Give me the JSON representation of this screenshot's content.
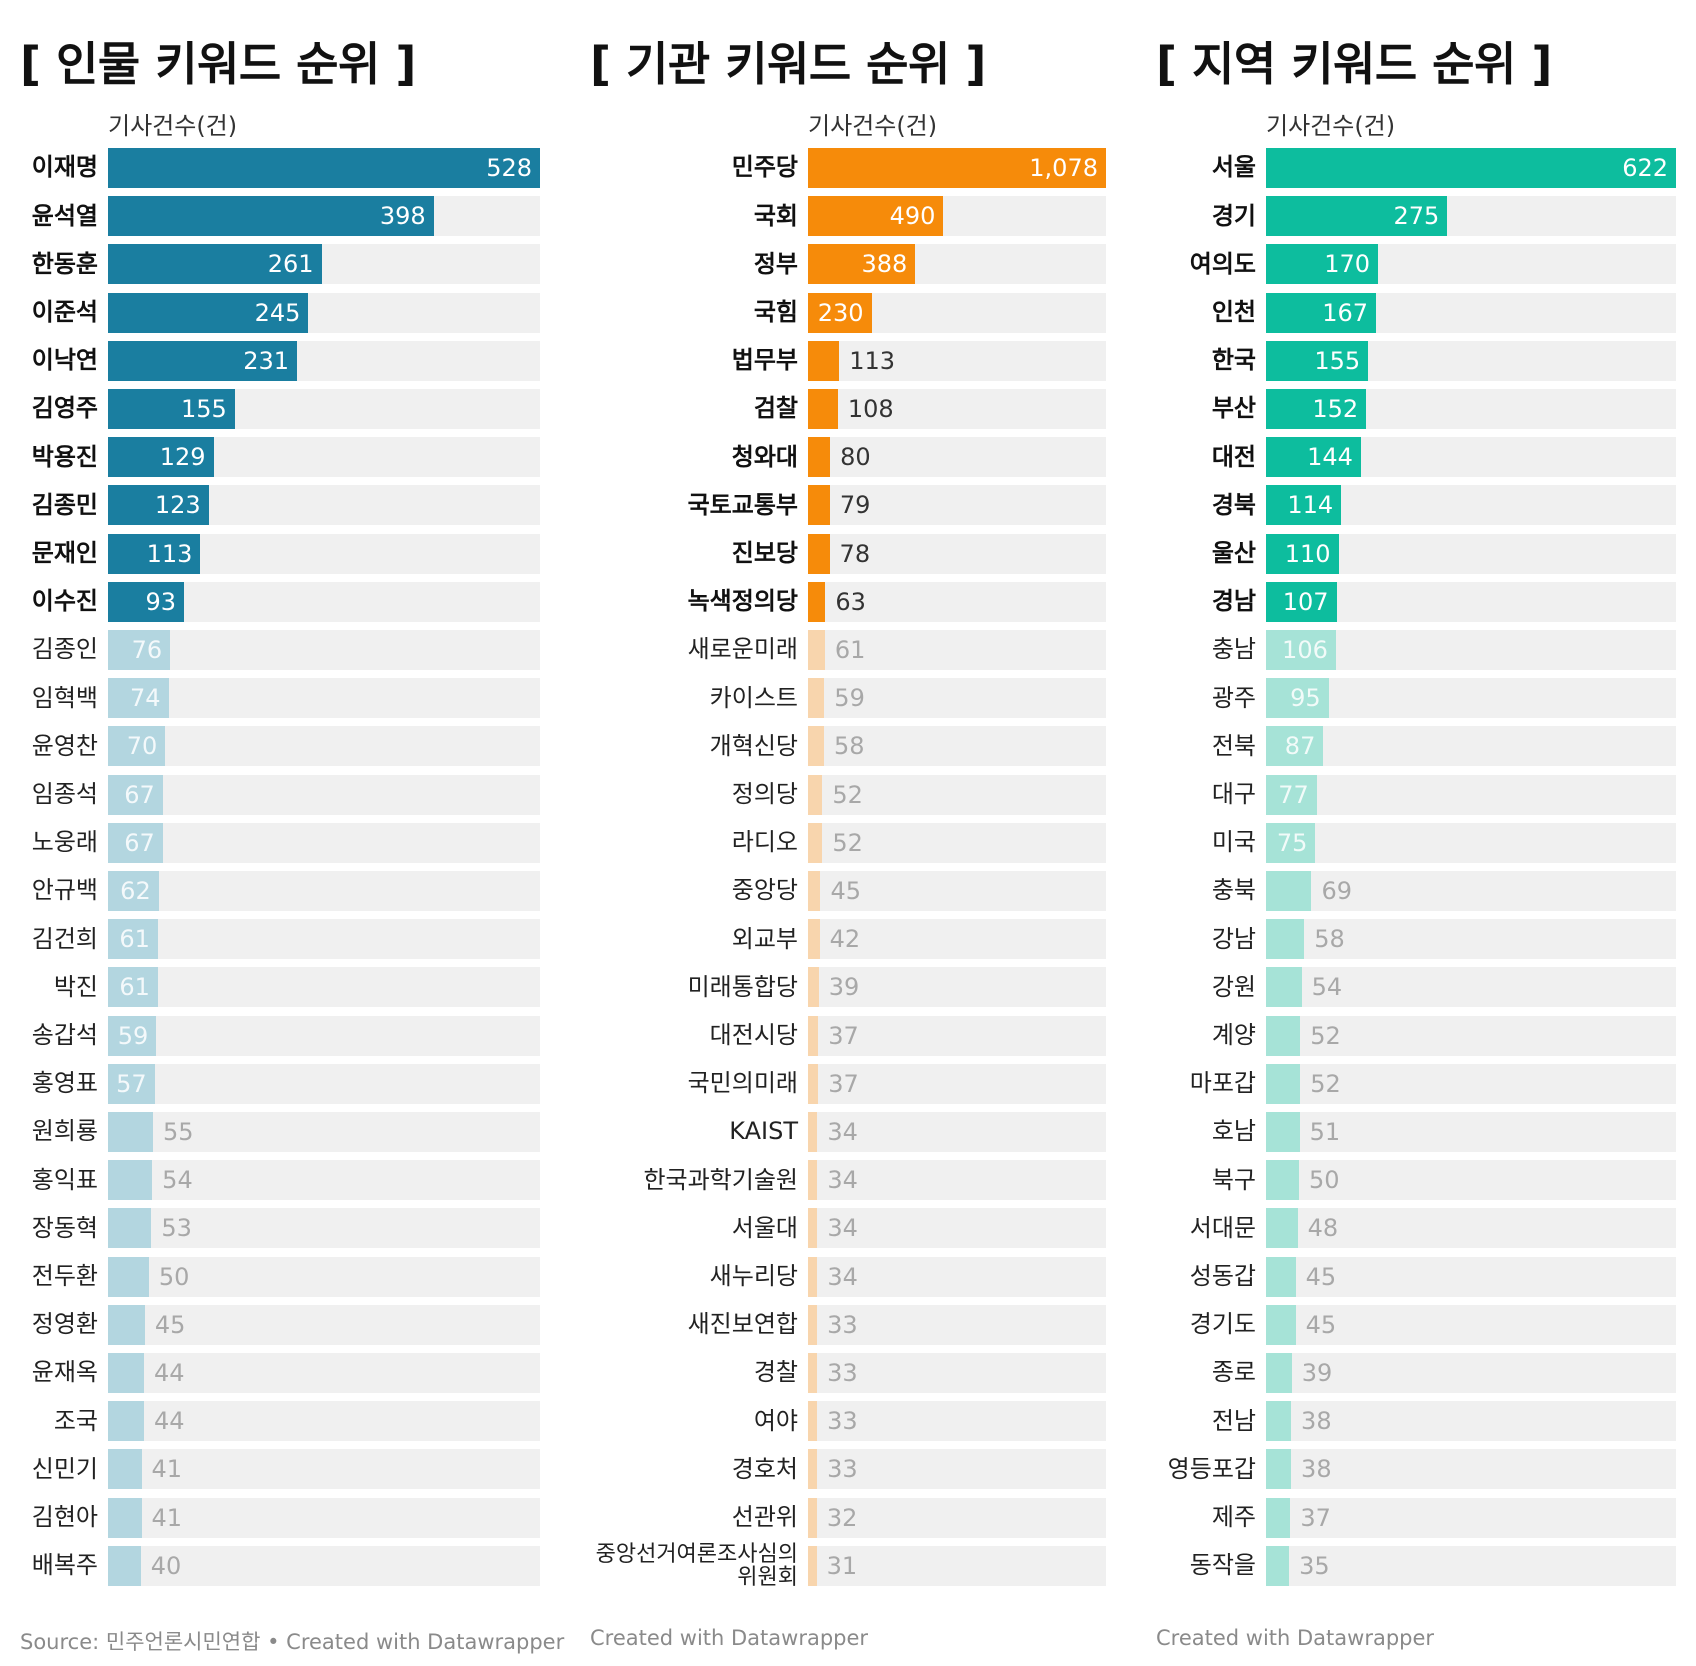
{
  "chart_data": [
    {
      "type": "bar",
      "orientation": "horizontal",
      "title": "[ 인물 키워드 순위 ]",
      "unit_label": "기사건수(건)",
      "accent_color": "#1a7ea0",
      "faded_color": "#b3d6e0",
      "highlight_top": 10,
      "categories": [
        "이재명",
        "윤석열",
        "한동훈",
        "이준석",
        "이낙연",
        "김영주",
        "박용진",
        "김종민",
        "문재인",
        "이수진",
        "김종인",
        "임혁백",
        "윤영찬",
        "임종석",
        "노웅래",
        "안규백",
        "김건희",
        "박진",
        "송갑석",
        "홍영표",
        "원희룡",
        "홍익표",
        "장동혁",
        "전두환",
        "정영환",
        "윤재옥",
        "조국",
        "신민기",
        "김현아",
        "배복주"
      ],
      "values": [
        528,
        398,
        261,
        245,
        231,
        155,
        129,
        123,
        113,
        93,
        76,
        74,
        70,
        67,
        67,
        62,
        61,
        61,
        59,
        57,
        55,
        54,
        53,
        50,
        45,
        44,
        44,
        41,
        41,
        40
      ],
      "value_labels": [
        "528",
        "398",
        "261",
        "245",
        "231",
        "155",
        "129",
        "123",
        "113",
        "93",
        "76",
        "74",
        "70",
        "67",
        "67",
        "62",
        "61",
        "61",
        "59",
        "57",
        "55",
        "54",
        "53",
        "50",
        "45",
        "44",
        "44",
        "41",
        "41",
        "40"
      ],
      "xlim": [
        0,
        528
      ],
      "credit": "Source: 민주언론시민연합 • Created with Datawrapper"
    },
    {
      "type": "bar",
      "orientation": "horizontal",
      "title": "[ 기관 키워드 순위 ]",
      "unit_label": "기사건수(건)",
      "accent_color": "#f68b0a",
      "faded_color": "#f8d5ad",
      "highlight_top": 10,
      "categories": [
        "민주당",
        "국회",
        "정부",
        "국힘",
        "법무부",
        "검찰",
        "청와대",
        "국토교통부",
        "진보당",
        "녹색정의당",
        "새로운미래",
        "카이스트",
        "개혁신당",
        "정의당",
        "라디오",
        "중앙당",
        "외교부",
        "미래통합당",
        "대전시당",
        "국민의미래",
        "KAIST",
        "한국과학기술원",
        "서울대",
        "새누리당",
        "새진보연합",
        "경찰",
        "여야",
        "경호처",
        "선관위",
        "중앙선거여론조사심의위원회"
      ],
      "values": [
        1078,
        490,
        388,
        230,
        113,
        108,
        80,
        79,
        78,
        63,
        61,
        59,
        58,
        52,
        52,
        45,
        42,
        39,
        37,
        37,
        34,
        34,
        34,
        34,
        33,
        33,
        33,
        33,
        32,
        31
      ],
      "value_labels": [
        "1,078",
        "490",
        "388",
        "230",
        "113",
        "108",
        "80",
        "79",
        "78",
        "63",
        "61",
        "59",
        "58",
        "52",
        "52",
        "45",
        "42",
        "39",
        "37",
        "37",
        "34",
        "34",
        "34",
        "34",
        "33",
        "33",
        "33",
        "33",
        "32",
        "31"
      ],
      "xlim": [
        0,
        1078
      ],
      "credit": "Created with Datawrapper"
    },
    {
      "type": "bar",
      "orientation": "horizontal",
      "title": "[ 지역 키워드 순위 ]",
      "unit_label": "기사건수(건)",
      "accent_color": "#0dbd9e",
      "faded_color": "#a6e3d7",
      "highlight_top": 10,
      "categories": [
        "서울",
        "경기",
        "여의도",
        "인천",
        "한국",
        "부산",
        "대전",
        "경북",
        "울산",
        "경남",
        "충남",
        "광주",
        "전북",
        "대구",
        "미국",
        "충북",
        "강남",
        "강원",
        "계양",
        "마포갑",
        "호남",
        "북구",
        "서대문",
        "성동갑",
        "경기도",
        "종로",
        "전남",
        "영등포갑",
        "제주",
        "동작을"
      ],
      "values": [
        622,
        275,
        170,
        167,
        155,
        152,
        144,
        114,
        110,
        107,
        106,
        95,
        87,
        77,
        75,
        69,
        58,
        54,
        52,
        52,
        51,
        50,
        48,
        45,
        45,
        39,
        38,
        38,
        37,
        35
      ],
      "value_labels": [
        "622",
        "275",
        "170",
        "167",
        "155",
        "152",
        "144",
        "114",
        "110",
        "107",
        "106",
        "95",
        "87",
        "77",
        "75",
        "69",
        "58",
        "54",
        "52",
        "52",
        "51",
        "50",
        "48",
        "45",
        "45",
        "39",
        "38",
        "38",
        "37",
        "35"
      ],
      "xlim": [
        0,
        622
      ],
      "credit": "Created with Datawrapper"
    }
  ]
}
